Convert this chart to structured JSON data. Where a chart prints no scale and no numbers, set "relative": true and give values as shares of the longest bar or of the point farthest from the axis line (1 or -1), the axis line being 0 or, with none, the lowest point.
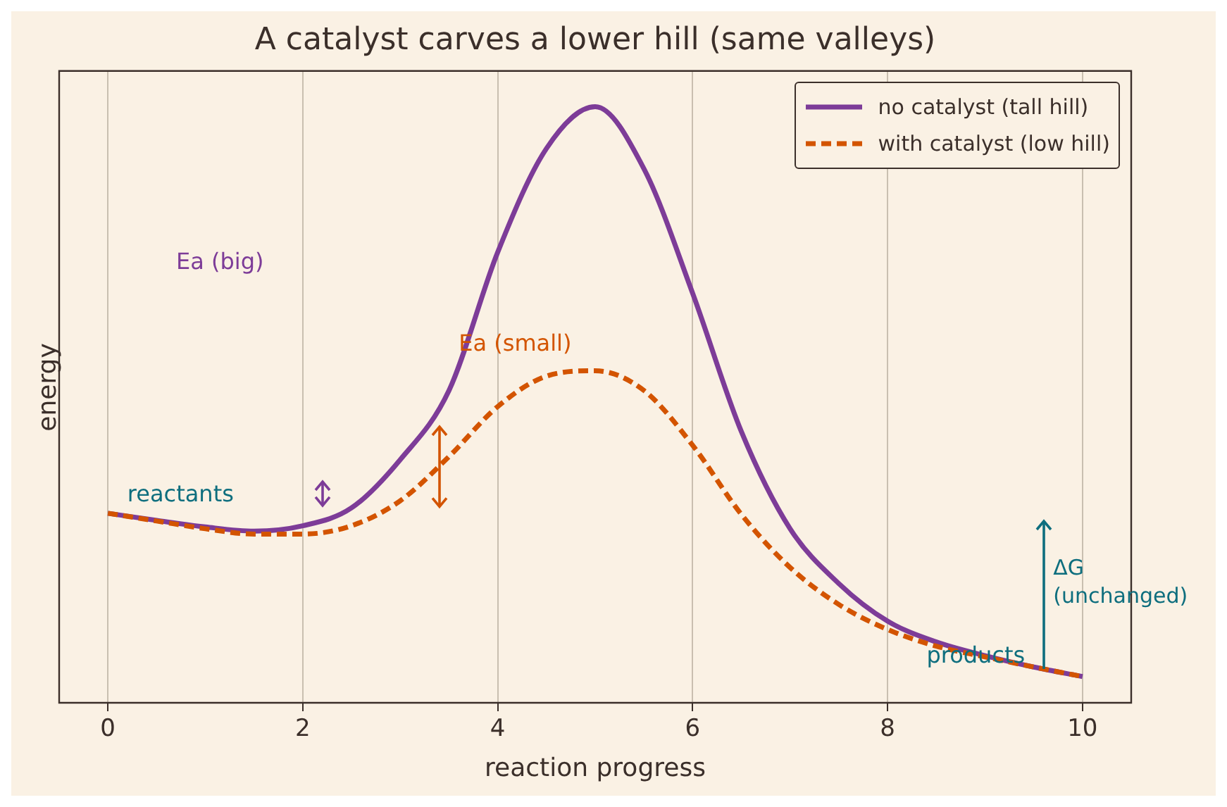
{
  "chart_data": {
    "type": "line",
    "title": "A catalyst carves a lower hill (same valleys)",
    "xlabel": "reaction progress",
    "ylabel": "energy",
    "relative": true,
    "x": [
      0,
      0.5,
      1,
      1.5,
      2,
      2.5,
      3,
      3.5,
      4,
      4.5,
      5,
      5.5,
      6,
      6.5,
      7,
      7.5,
      8,
      8.5,
      9,
      9.5,
      10
    ],
    "series": [
      {
        "name": "no catalyst (tall hill)",
        "color": "#7d3c98",
        "line_style": "solid",
        "values": [
          0.318,
          0.306,
          0.295,
          0.288,
          0.297,
          0.327,
          0.408,
          0.524,
          0.756,
          0.93,
          1,
          0.896,
          0.687,
          0.455,
          0.292,
          0.2,
          0.137,
          0.102,
          0.079,
          0.06,
          0.044
        ]
      },
      {
        "name": "with catalyst (low hill)",
        "color": "#d35400",
        "line_style": "dashed",
        "values": [
          0.318,
          0.305,
          0.292,
          0.283,
          0.283,
          0.297,
          0.339,
          0.413,
          0.497,
          0.548,
          0.557,
          0.524,
          0.432,
          0.316,
          0.227,
          0.165,
          0.123,
          0.095,
          0.077,
          0.06,
          0.044
        ]
      }
    ],
    "xlim": [
      -0.5,
      10.5
    ],
    "xticks": [
      0,
      2,
      4,
      6,
      8,
      10
    ],
    "grid": "x",
    "legend": "top right",
    "marker": "none",
    "annotations": [
      "Ea (big)",
      "Ea (small)",
      "reactants",
      "products",
      "ΔG\n(unchanged)"
    ]
  }
}
